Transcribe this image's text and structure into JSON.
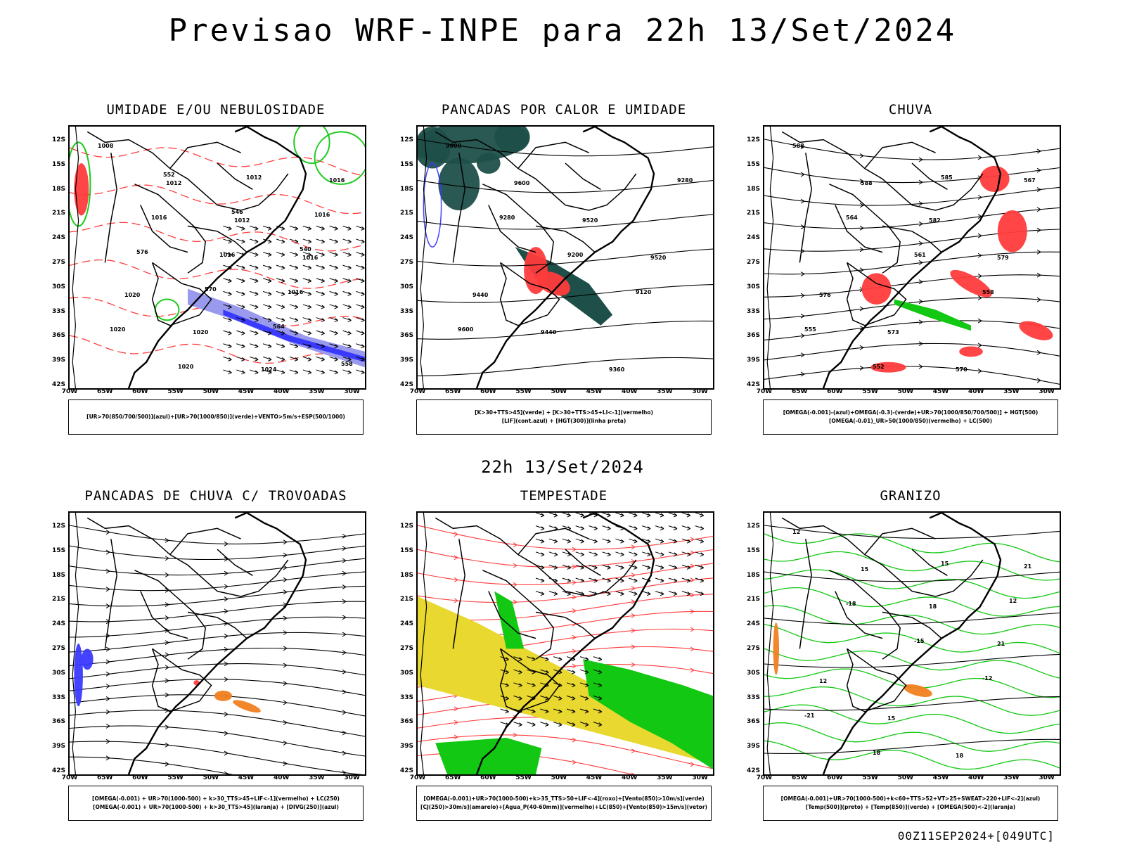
{
  "header": {
    "title": "Previsao WRF-INPE  para 22h 13/Set/2024",
    "subtitle": "22h 13/Set/2024",
    "run_info": "00Z11SEP2024+[049UTC]"
  },
  "axes": {
    "lat_labels": [
      "12S",
      "15S",
      "18S",
      "21S",
      "24S",
      "27S",
      "30S",
      "33S",
      "36S",
      "39S",
      "42S"
    ],
    "lon_labels": [
      "70W",
      "65W",
      "60W",
      "55W",
      "50W",
      "45W",
      "40W",
      "35W",
      "30W"
    ]
  },
  "colors": {
    "red": "#ff3b3b",
    "green": "#12c812",
    "blue": "#3a3aff",
    "lavender": "#9999ee",
    "teal": "#1f4f49",
    "yellow": "#e8d830",
    "orange": "#f08020"
  },
  "chart_data": [
    {
      "type": "map",
      "id": "p1",
      "title": "UMIDADE E/OU NEBULOSIDADE",
      "legend": [
        "[UR>70(850/700/500)](azul)+[UR>70(1000/850)](verde)+VENTO>5m/s+ESP(500/1000)"
      ],
      "lat_range": [
        "12S",
        "42S"
      ],
      "lon_range": [
        "70W",
        "30W"
      ],
      "contour_labels": [
        "1008",
        "1012",
        "1012",
        "1016",
        "1020",
        "1020",
        "1024",
        "1016",
        "1016",
        "1016",
        "1016",
        "1020",
        "1020",
        "1012",
        "1016",
        "576",
        "570",
        "564",
        "558",
        "552",
        "546",
        "540"
      ]
    },
    {
      "type": "map",
      "id": "p2",
      "title": "PANCADAS POR CALOR E UMIDADE",
      "legend": [
        "[K>30+TTS>45](verde) + [K>30+TTS>45+LI<-1](vermelho)",
        "[LIF](cont.azul) + [HGT(300)](linha preta)"
      ],
      "lat_range": [
        "12S",
        "42S"
      ],
      "lon_range": [
        "70W",
        "30W"
      ],
      "contour_labels": [
        "9600",
        "9600",
        "9520",
        "9520",
        "9440",
        "9440",
        "9360",
        "9280",
        "9280",
        "9200",
        "9120",
        "9600"
      ]
    },
    {
      "type": "map",
      "id": "p3",
      "title": "CHUVA",
      "legend": [
        "[OMEGA(-0.001)-(azul)+OMEGA(-0.3)-(verde)+UR>70(1000/850/700/500)] + HGT(500)",
        "[OMEGA(-0.01)_UR>50(1000/850)(vermelho) + LC(500)"
      ],
      "lat_range": [
        "12S",
        "42S"
      ],
      "lon_range": [
        "70W",
        "30W"
      ],
      "contour_labels": [
        "588",
        "588",
        "582",
        "579",
        "576",
        "573",
        "570",
        "567",
        "564",
        "561",
        "558",
        "555",
        "552",
        "585"
      ]
    },
    {
      "type": "map",
      "id": "p4",
      "title": "PANCADAS DE CHUVA C/ TROVOADAS",
      "legend": [
        "[OMEGA(-0.001) + UR>70(1000-500) + k>30_TTS>45+LIF<-1](vermelho) + LC(250)",
        "[OMEGA(-0.001) + UR>70(1000-500) + k>30_TTS>45](laranja) + [DIVG(250)](azul)"
      ],
      "lat_range": [
        "12S",
        "42S"
      ],
      "lon_range": [
        "70W",
        "30W"
      ],
      "contour_labels": []
    },
    {
      "type": "map",
      "id": "p5",
      "title": "TEMPESTADE",
      "legend": [
        "[OMEGA(-0.001)+UR>70(1000-500)+k>35_TTS>50+LIF<-4](roxo)+[Vento(850)>10m/s](verde)",
        "[CJ(250)>30m/s](amarelo)+[Agua_P(40-60mm)](vermelho)+LC(850)+[Vento(850)>15m/s](vetor)"
      ],
      "lat_range": [
        "12S",
        "42S"
      ],
      "lon_range": [
        "70W",
        "30W"
      ],
      "contour_labels": []
    },
    {
      "type": "map",
      "id": "p6",
      "title": "GRANIZO",
      "legend": [
        "[OMEGA(-0.001)+UR>70(1000-500)+k<60+TTS>52+VT>25+SWEAT>220+LIF<-2](azul)",
        "[Temp(500)](preto) + [Temp(850)](verde) + [OMEGA(500)<-2](laranja)"
      ],
      "lat_range": [
        "12S",
        "42S"
      ],
      "lon_range": [
        "70W",
        "30W"
      ],
      "contour_labels": [
        "12",
        "15",
        "18",
        "21",
        "12",
        "15",
        "18",
        "21",
        "-18",
        "-15",
        "-12",
        "-21",
        "18",
        "15",
        "12"
      ]
    }
  ]
}
